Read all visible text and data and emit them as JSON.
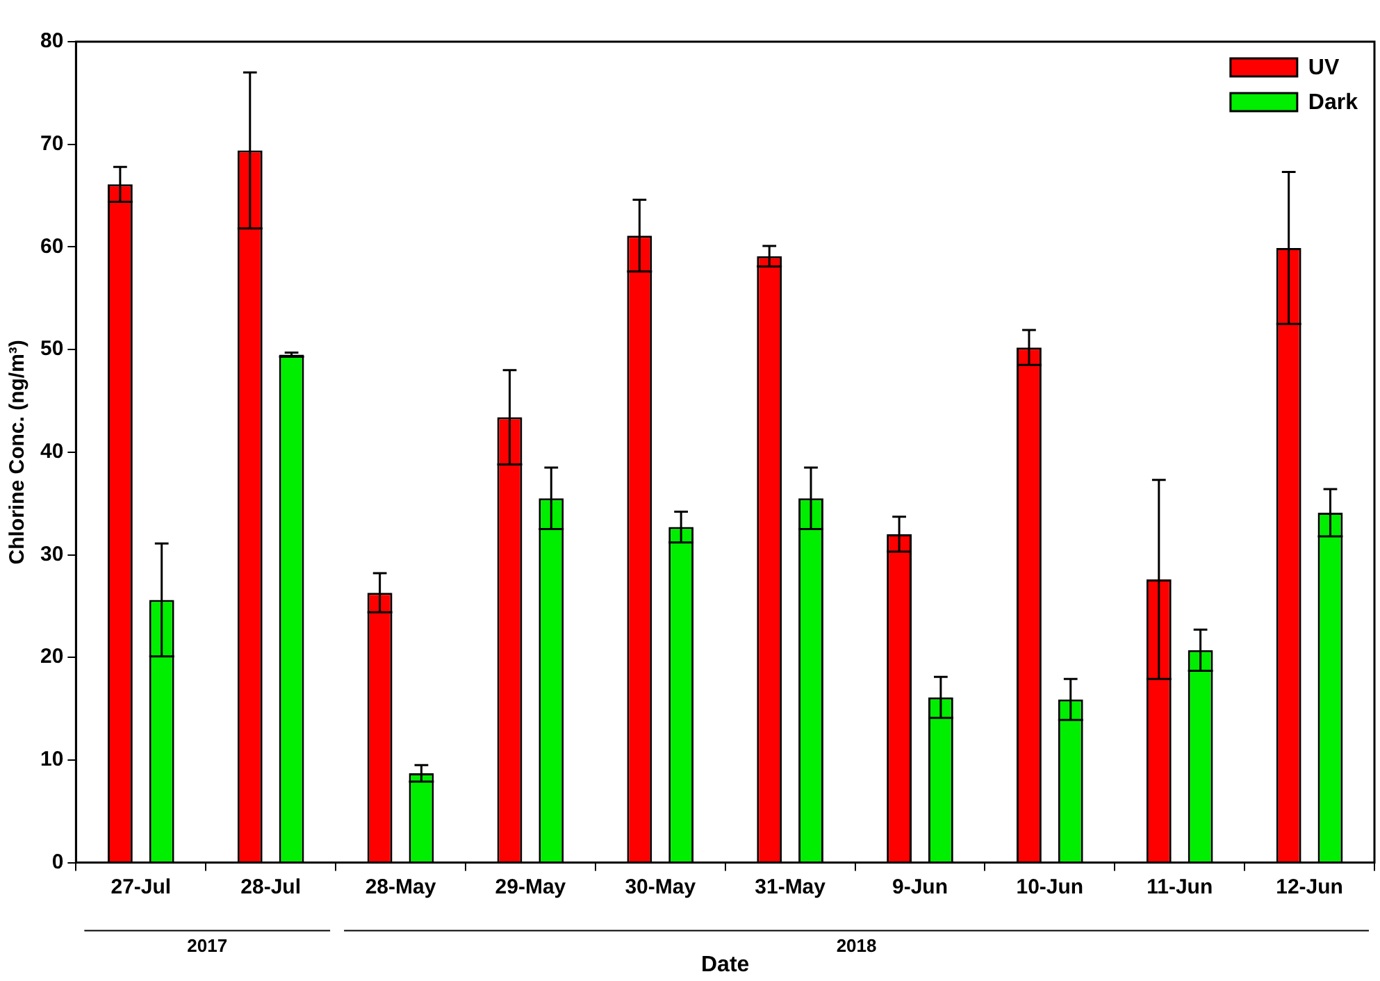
{
  "chart_data": {
    "type": "bar",
    "xlabel": "Date",
    "ylabel": "Chlorine Conc. (ng/m³)",
    "categories": [
      "27-Jul",
      "28-Jul",
      "28-May",
      "29-May",
      "30-May",
      "31-May",
      "9-Jun",
      "10-Jun",
      "11-Jun",
      "12-Jun"
    ],
    "series": [
      {
        "name": "UV",
        "color": "#ff0000",
        "values": [
          66.1,
          69.4,
          26.3,
          43.4,
          61.1,
          59.1,
          32.0,
          50.2,
          27.6,
          59.9
        ],
        "errors": [
          1.7,
          7.6,
          1.9,
          4.6,
          3.5,
          1.0,
          1.7,
          1.7,
          9.7,
          7.4
        ]
      },
      {
        "name": "Dark",
        "color": "#00ee00",
        "values": [
          25.6,
          49.5,
          8.7,
          35.5,
          32.7,
          35.5,
          16.1,
          15.9,
          20.7,
          34.1
        ],
        "errors": [
          5.5,
          0.2,
          0.8,
          3.0,
          1.5,
          3.0,
          2.0,
          2.0,
          2.0,
          2.3
        ]
      }
    ],
    "ylim": [
      0,
      80
    ],
    "yticks": [
      0,
      10,
      20,
      30,
      40,
      50,
      60,
      70,
      80
    ],
    "grid": false,
    "legend": "top right",
    "annotations": [
      "2017",
      "2018"
    ]
  }
}
